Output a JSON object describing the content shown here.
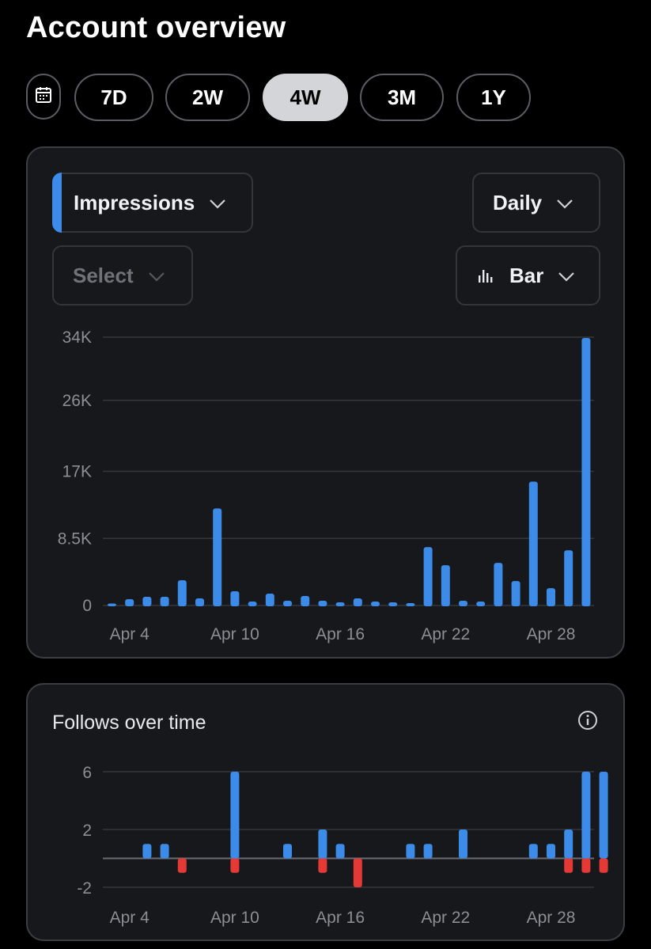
{
  "page": {
    "title": "Account overview"
  },
  "range_selector": {
    "options": [
      "7D",
      "2W",
      "4W",
      "3M",
      "1Y"
    ],
    "selected": "4W",
    "calendar_icon": "calendar-icon"
  },
  "impressions_card": {
    "metric_dropdown": {
      "label": "Impressions",
      "accent": "#3d8be8"
    },
    "granularity_dropdown": {
      "label": "Daily"
    },
    "compare_dropdown": {
      "placeholder": "Select"
    },
    "chart_type_dropdown": {
      "label": "Bar",
      "icon": "bar-chart-icon"
    }
  },
  "follows_card": {
    "title": "Follows over time",
    "info_icon": "info-icon"
  },
  "colors": {
    "positive": "#3d8be8",
    "negative": "#e53935",
    "grid": "#34373c"
  },
  "chart_data": [
    {
      "type": "bar",
      "ylim": [
        0,
        34000
      ],
      "y_ticks": [
        0,
        8500,
        17000,
        26000,
        34000
      ],
      "y_tick_labels": [
        "0",
        "8.5K",
        "17K",
        "26K",
        "34K"
      ],
      "x_tick_labels": [
        "Apr 4",
        "Apr 10",
        "Apr 16",
        "Apr 22",
        "Apr 28"
      ],
      "x_tick_days": [
        4,
        10,
        16,
        22,
        28
      ],
      "days": [
        3,
        4,
        5,
        6,
        7,
        8,
        9,
        10,
        11,
        12,
        13,
        14,
        15,
        16,
        17,
        18,
        19,
        20,
        21,
        22,
        23,
        24,
        25,
        26,
        27,
        28,
        29,
        30,
        31
      ],
      "values": [
        120,
        800,
        1100,
        1100,
        3200,
        900,
        12300,
        1800,
        500,
        1500,
        600,
        1200,
        600,
        400,
        900,
        500,
        400,
        300,
        7400,
        5100,
        600,
        500,
        5400,
        3100,
        15700,
        2200,
        7000,
        33900,
        0
      ]
    },
    {
      "type": "bar",
      "title": "Follows over time",
      "ylim": [
        -2,
        6
      ],
      "y_ticks": [
        -2,
        2,
        6
      ],
      "y_tick_labels": [
        "-2",
        "2",
        "6"
      ],
      "x_tick_labels": [
        "Apr 4",
        "Apr 10",
        "Apr 16",
        "Apr 22",
        "Apr 28"
      ],
      "x_tick_days": [
        4,
        10,
        16,
        22,
        28
      ],
      "series": [
        {
          "days": [
            5,
            6,
            10,
            13,
            15,
            16,
            20,
            21,
            23,
            27,
            28,
            29,
            30,
            31
          ],
          "values": [
            1,
            1,
            6,
            1,
            2,
            1,
            1,
            1,
            2,
            1,
            1,
            2,
            6,
            6
          ]
        },
        {
          "days": [
            7,
            10,
            15,
            17,
            29,
            30,
            31
          ],
          "values": [
            -1,
            -1,
            -1,
            -2,
            -1,
            -1,
            -1
          ]
        }
      ]
    }
  ]
}
